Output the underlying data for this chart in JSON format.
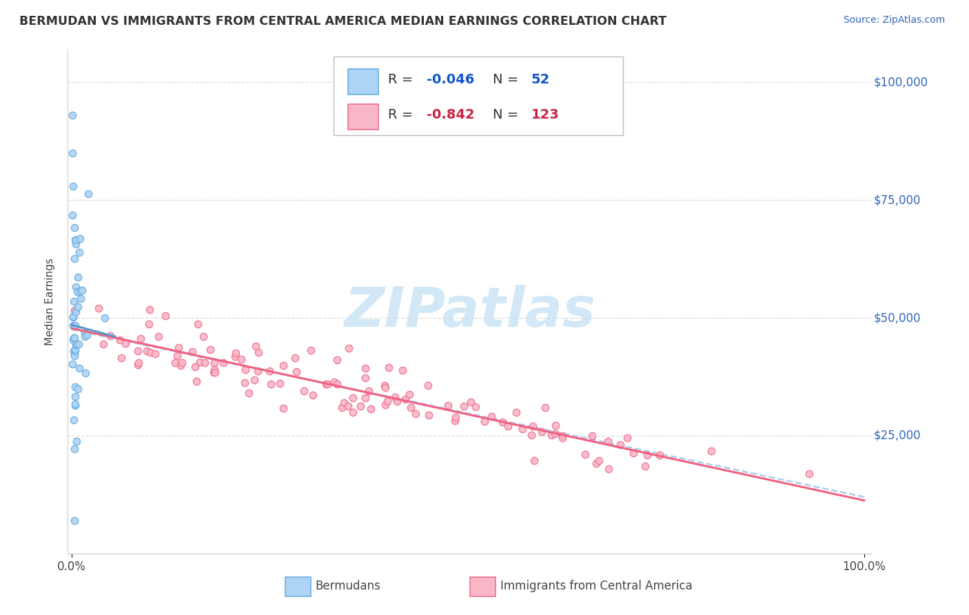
{
  "title": "BERMUDAN VS IMMIGRANTS FROM CENTRAL AMERICA MEDIAN EARNINGS CORRELATION CHART",
  "source": "Source: ZipAtlas.com",
  "ylabel": "Median Earnings",
  "legend_blue_label": "Bermudans",
  "legend_pink_label": "Immigrants from Central America",
  "R_blue": -0.046,
  "N_blue": 52,
  "R_pink": -0.842,
  "N_pink": 123,
  "blue_edge": "#6aaee0",
  "blue_face": "#aed4f5",
  "pink_edge": "#f07090",
  "pink_face": "#f9b8c8",
  "blue_line_color": "#5599cc",
  "pink_line_color": "#f06080",
  "dash_color": "#aaccee",
  "watermark_color": "#cce4f5",
  "ytick_color": "#3366bb",
  "title_color": "#333333",
  "source_color": "#3366bb",
  "grid_color": "#dddddd",
  "ytick_vals": [
    0,
    25000,
    50000,
    75000,
    100000
  ],
  "ytick_labels": [
    "",
    "$25,000",
    "$50,000",
    "$75,000",
    "$100,000"
  ],
  "xlim": [
    -0.005,
    1.01
  ],
  "ylim": [
    0,
    107000
  ]
}
